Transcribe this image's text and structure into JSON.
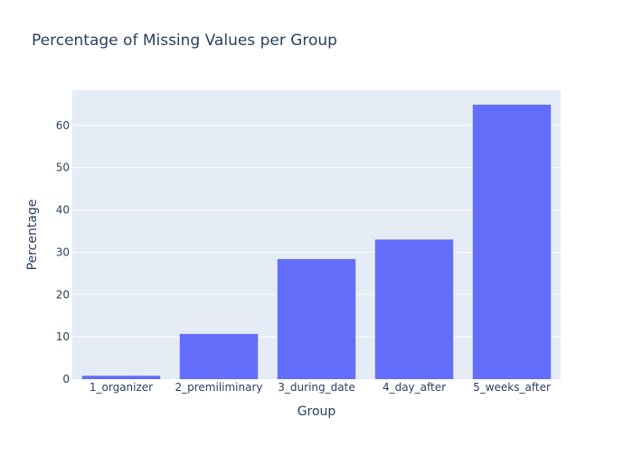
{
  "chart_data": {
    "type": "bar",
    "title": "Percentage of Missing Values per Group",
    "xlabel": "Group",
    "ylabel": "Percentage",
    "categories": [
      "1_organizer",
      "2_premiliminary",
      "3_during_date",
      "4_day_after",
      "5_weeks_after"
    ],
    "values": [
      0.8,
      10.7,
      28.4,
      33.0,
      64.9
    ],
    "ylim": [
      0,
      68.3
    ],
    "yticks": [
      0,
      10,
      20,
      30,
      40,
      50,
      60
    ],
    "grid": true,
    "legend": "none",
    "colors": {
      "bar": "#636efa",
      "plot_background": "#e5ecf6",
      "grid": "#ffffff",
      "text": "#2a3f5f",
      "paper": "#ffffff"
    }
  }
}
